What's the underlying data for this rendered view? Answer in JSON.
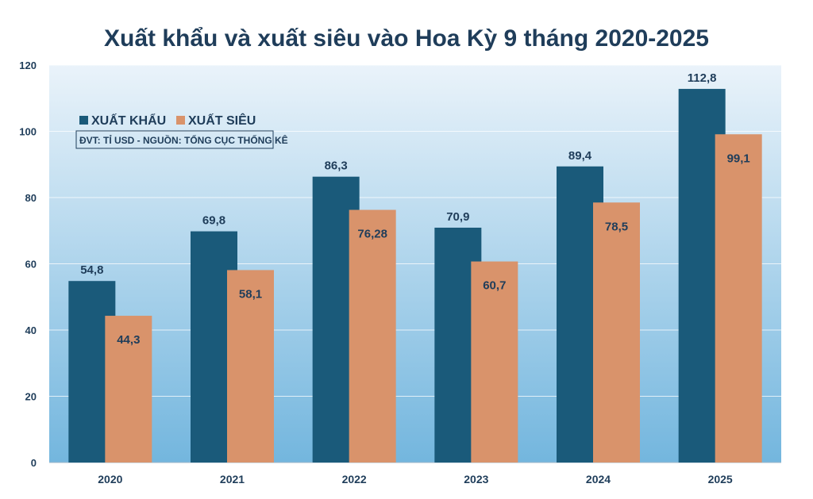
{
  "chart_data": {
    "type": "bar",
    "title": "Xuất khẩu và xuất siêu vào Hoa Kỳ 9 tháng 2020-2025",
    "categories": [
      "2020",
      "2021",
      "2022",
      "2023",
      "2024",
      "2025"
    ],
    "series": [
      {
        "name": "XUẤT KHẨU",
        "values": [
          54.8,
          69.8,
          86.3,
          70.9,
          89.4,
          112.8
        ],
        "labels": [
          "54,8",
          "69,8",
          "86,3",
          "70,9",
          "89,4",
          "112,8"
        ],
        "color": "#1a5a7a"
      },
      {
        "name": "XUẤT SIÊU",
        "values": [
          44.3,
          58.1,
          76.28,
          60.7,
          78.5,
          99.1
        ],
        "labels": [
          "44,3",
          "58,1",
          "76,28",
          "60,7",
          "78,5",
          "99,1"
        ],
        "color": "#d9936b"
      }
    ],
    "ylim": [
      0,
      120
    ],
    "yticks": [
      0,
      20,
      40,
      60,
      80,
      100,
      120
    ],
    "grid": true,
    "legend_position": "top-left",
    "note": "ĐVT: TỈ USD - NGUỒN: TỔNG CỤC THỐNG KÊ",
    "xlabel": "",
    "ylabel": ""
  },
  "colors": {
    "text": "#1f3d5a",
    "bg_top": "#eaf3fa",
    "bg_bottom": "#73b6de"
  }
}
